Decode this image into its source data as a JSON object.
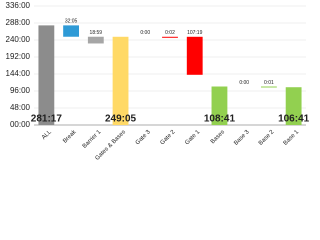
{
  "chart_data": {
    "type": "waterfall",
    "categories": [
      "ALL",
      "Break",
      "Barrier 1",
      "Gates & Bases",
      "Gate 3",
      "Gate 2",
      "Gate 1",
      "Bases",
      "Base 3",
      "Base 2",
      "Base 1"
    ],
    "values": [
      281.283,
      32.083,
      18.983,
      249.083,
      0,
      0.033,
      107.317,
      108.683,
      0,
      0.017,
      106.683
    ],
    "value_labels": [
      "281:17",
      "32:05",
      "18:59",
      "249:05",
      "0:00",
      "0:02",
      "107:19",
      "108:41",
      "0:00",
      "0:01",
      "106:41"
    ],
    "colors": [
      "#8c8c8c",
      "#2e9ad6",
      "#a6a6a6",
      "#ffd966",
      "#ff0000",
      "#ff0000",
      "#ff0000",
      "#92d050",
      "#92d050",
      "#92d050",
      "#92d050"
    ],
    "totals": [
      0,
      3,
      7,
      10
    ],
    "ylim": [
      0,
      336
    ],
    "yticks": [
      {
        "value": 0,
        "label": "00:00"
      },
      {
        "value": 48,
        "label": "48:00"
      },
      {
        "value": 96,
        "label": "96:00"
      },
      {
        "value": 144,
        "label": "144:00"
      },
      {
        "value": 192,
        "label": "192:00"
      },
      {
        "value": 240,
        "label": "240:00"
      },
      {
        "value": 288,
        "label": "288:00"
      },
      {
        "value": 336,
        "label": "336:00"
      }
    ],
    "grid": true
  }
}
